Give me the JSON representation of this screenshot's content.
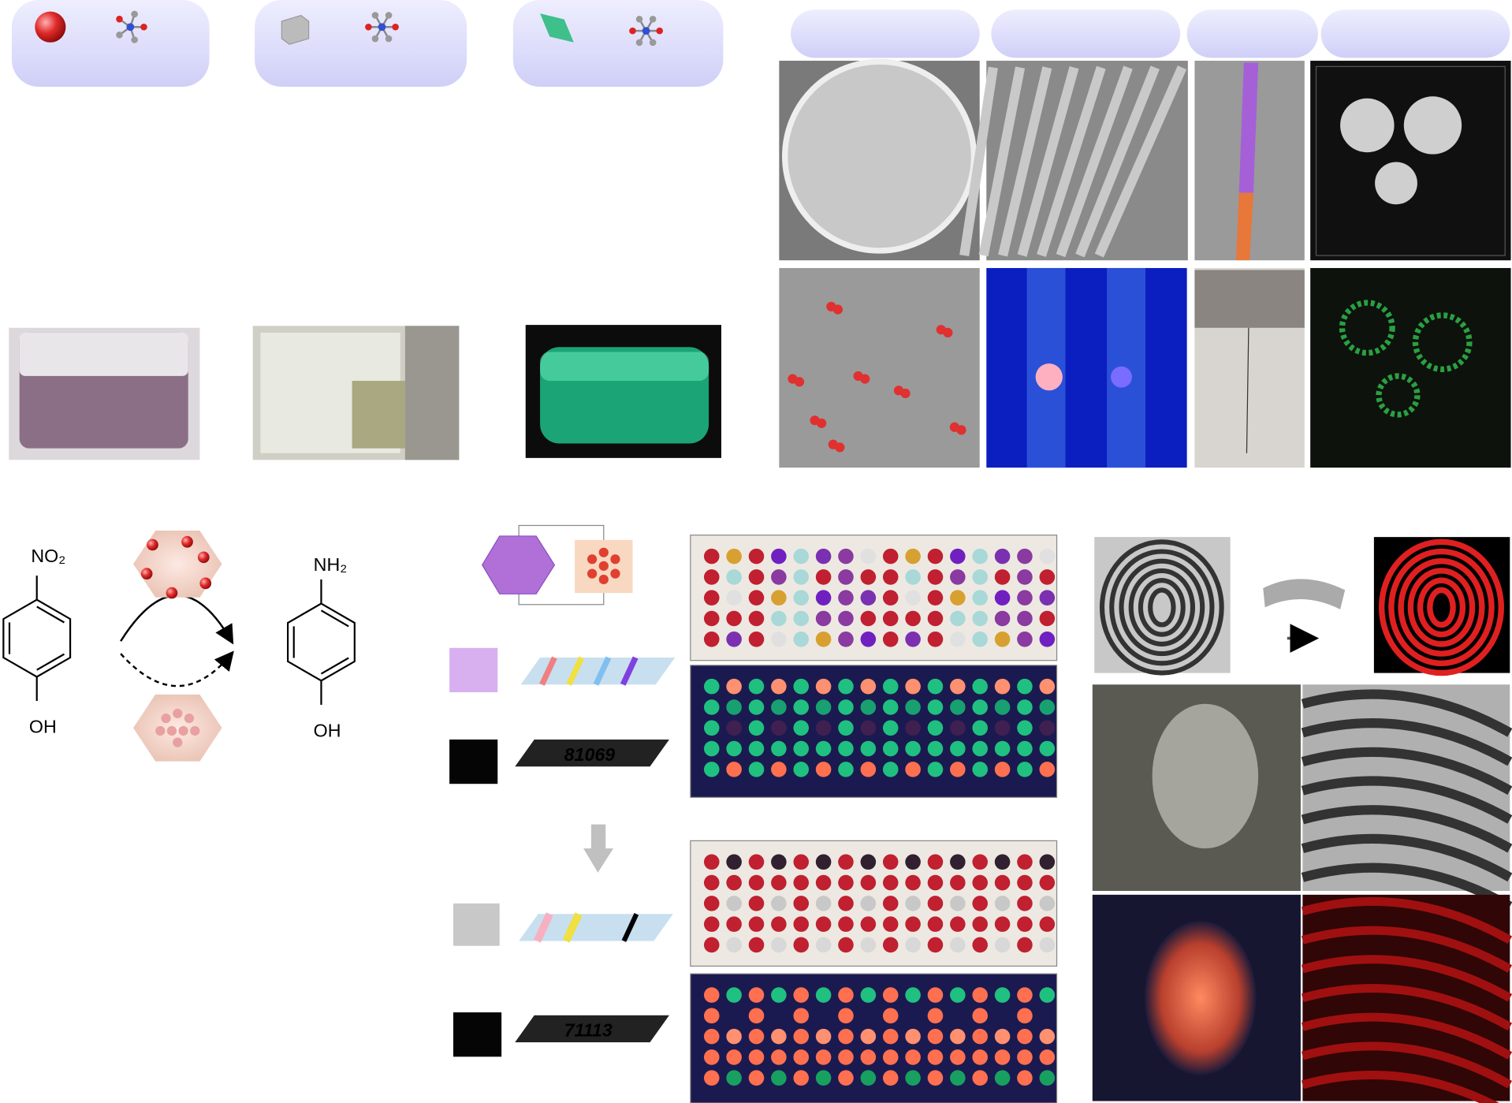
{
  "reaction": {
    "reactant_top": "NO₂",
    "reactant_bottom": "OH",
    "product_top": "NH₂",
    "product_bottom": "OH"
  },
  "strips": {
    "first_code": "81069",
    "second_code": "71113"
  }
}
